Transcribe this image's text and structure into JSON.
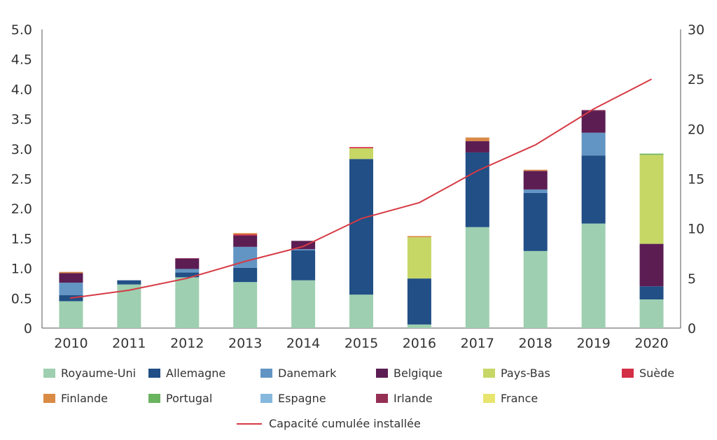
{
  "chart_data": {
    "type": "bar",
    "stacked": true,
    "categories": [
      "2010",
      "2011",
      "2012",
      "2013",
      "2014",
      "2015",
      "2016",
      "2017",
      "2018",
      "2019",
      "2020"
    ],
    "ylim_left": [
      0,
      5
    ],
    "yticks_left": [
      "0",
      "0.5",
      "1.0",
      "1.5",
      "2.0",
      "2.5",
      "3.0",
      "3.5",
      "4.0",
      "4.5",
      "5.0"
    ],
    "ylim_right": [
      0,
      30
    ],
    "yticks_right": [
      "0",
      "5",
      "10",
      "15",
      "20",
      "25",
      "30"
    ],
    "series": [
      {
        "name": "Royaume-Uni",
        "color": "#9ecfb0",
        "values": [
          0.45,
          0.73,
          0.85,
          0.77,
          0.8,
          0.56,
          0.06,
          1.69,
          1.29,
          1.75,
          0.48
        ]
      },
      {
        "name": "Allemagne",
        "color": "#214f86",
        "values": [
          0.1,
          0.07,
          0.08,
          0.24,
          0.5,
          2.27,
          0.77,
          1.25,
          0.97,
          1.14,
          0.22
        ]
      },
      {
        "name": "Danemark",
        "color": "#6295c3",
        "values": [
          0.21,
          0,
          0.06,
          0.35,
          0.02,
          0,
          0,
          0,
          0.06,
          0.38,
          0
        ]
      },
      {
        "name": "Belgique",
        "color": "#5c1d53",
        "values": [
          0.16,
          0,
          0.17,
          0.19,
          0.14,
          0,
          0,
          0.19,
          0.31,
          0.37,
          0.71
        ]
      },
      {
        "name": "Pays-Bas",
        "color": "#c6d766",
        "values": [
          0,
          0,
          0,
          0,
          0,
          0.18,
          0.69,
          0,
          0,
          0,
          1.49
        ]
      },
      {
        "name": "Suède",
        "color": "#d32f45",
        "values": [
          0,
          0,
          0,
          0.02,
          0,
          0.02,
          0,
          0,
          0,
          0,
          0
        ]
      },
      {
        "name": "Finlande",
        "color": "#d98a45",
        "values": [
          0.02,
          0,
          0,
          0.02,
          0,
          0,
          0.02,
          0.06,
          0.02,
          0,
          0
        ]
      },
      {
        "name": "Portugal",
        "color": "#6ab35f",
        "values": [
          0,
          0,
          0,
          0,
          0,
          0,
          0,
          0,
          0,
          0,
          0.02
        ]
      },
      {
        "name": "Espagne",
        "color": "#86b8de",
        "values": [
          0,
          0,
          0,
          0,
          0,
          0,
          0,
          0,
          0,
          0,
          0
        ]
      },
      {
        "name": "Irlande",
        "color": "#962f54",
        "values": [
          0,
          0,
          0.01,
          0,
          0,
          0,
          0,
          0,
          0,
          0.01,
          0
        ]
      },
      {
        "name": "France",
        "color": "#e8e56e",
        "values": [
          0,
          0,
          0,
          0,
          0,
          0,
          0,
          0,
          0,
          0,
          0
        ]
      }
    ],
    "line": {
      "name": "Capacité cumulée installée",
      "color": "#d63a44",
      "axis": "right",
      "values": [
        3.0,
        3.8,
        5.0,
        6.7,
        8.2,
        11.0,
        12.6,
        15.8,
        18.4,
        22.0,
        25.0
      ]
    },
    "legend_position": "bottom"
  }
}
